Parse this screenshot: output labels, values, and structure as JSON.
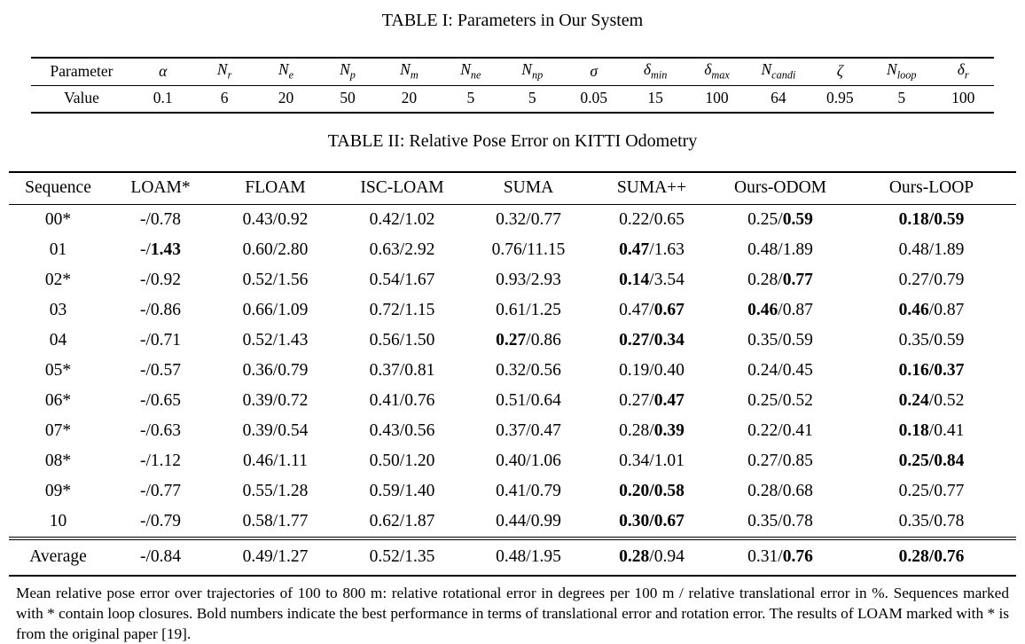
{
  "table1": {
    "title": "TABLE I: Parameters in Our System",
    "header_label": "Parameter",
    "value_label": "Value",
    "parameters": [
      "α",
      "N_r",
      "N_e",
      "N_p",
      "N_m",
      "N_ne",
      "N_np",
      "σ",
      "δ_min",
      "δ_max",
      "N_candi",
      "ζ",
      "N_loop",
      "δ_r"
    ],
    "values": [
      "0.1",
      "6",
      "20",
      "50",
      "20",
      "5",
      "5",
      "0.05",
      "15",
      "100",
      "64",
      "0.95",
      "5",
      "100"
    ]
  },
  "table2": {
    "title": "TABLE II: Relative Pose Error on KITTI Odometry",
    "columns": [
      "Sequence",
      "LOAM*",
      "FLOAM",
      "ISC-LOAM",
      "SUMA",
      "SUMA++",
      "Ours-ODOM",
      "Ours-LOOP"
    ],
    "rows": [
      {
        "seq": "00*",
        "cells": [
          "-/0.78",
          "0.43/0.92",
          "0.42/1.02",
          "0.32/0.77",
          "0.22/0.65",
          "0.25/*0.59*",
          "*0.18/0.59*"
        ]
      },
      {
        "seq": "01",
        "cells": [
          "-/*1.43*",
          "0.60/2.80",
          "0.63/2.92",
          "0.76/11.15",
          "*0.47*/1.63",
          "0.48/1.89",
          "0.48/1.89"
        ]
      },
      {
        "seq": "02*",
        "cells": [
          "-/0.92",
          "0.52/1.56",
          "0.54/1.67",
          "0.93/2.93",
          "*0.14*/3.54",
          "0.28/*0.77*",
          "0.27/0.79"
        ]
      },
      {
        "seq": "03",
        "cells": [
          "-/0.86",
          "0.66/1.09",
          "0.72/1.15",
          "0.61/1.25",
          "0.47/*0.67*",
          "*0.46*/0.87",
          "*0.46*/0.87"
        ]
      },
      {
        "seq": "04",
        "cells": [
          "-/0.71",
          "0.52/1.43",
          "0.56/1.50",
          "*0.27*/0.86",
          "*0.27/0.34*",
          "0.35/0.59",
          "0.35/0.59"
        ]
      },
      {
        "seq": "05*",
        "cells": [
          "-/0.57",
          "0.36/0.79",
          "0.37/0.81",
          "0.32/0.56",
          "0.19/0.40",
          "0.24/0.45",
          "*0.16/0.37*"
        ]
      },
      {
        "seq": "06*",
        "cells": [
          "-/0.65",
          "0.39/0.72",
          "0.41/0.76",
          "0.51/0.64",
          "0.27/*0.47*",
          "0.25/0.52",
          "*0.24*/0.52"
        ]
      },
      {
        "seq": "07*",
        "cells": [
          "-/0.63",
          "0.39/0.54",
          "0.43/0.56",
          "0.37/0.47",
          "0.28/*0.39*",
          "0.22/0.41",
          "*0.18*/0.41"
        ]
      },
      {
        "seq": "08*",
        "cells": [
          "-/1.12",
          "0.46/1.11",
          "0.50/1.20",
          "0.40/1.06",
          "0.34/1.01",
          "0.27/0.85",
          "*0.25/0.84*"
        ]
      },
      {
        "seq": "09*",
        "cells": [
          "-/0.77",
          "0.55/1.28",
          "0.59/1.40",
          "0.41/0.79",
          "*0.20/0.58*",
          "0.28/0.68",
          "0.25/0.77"
        ]
      },
      {
        "seq": "10",
        "cells": [
          "-/0.79",
          "0.58/1.77",
          "0.62/1.87",
          "0.44/0.99",
          "*0.30/0.67*",
          "0.35/0.78",
          "0.35/0.78"
        ]
      }
    ],
    "average": {
      "seq": "Average",
      "cells": [
        "-/0.84",
        "0.49/1.27",
        "0.52/1.35",
        "0.48/1.95",
        "*0.28*/0.94",
        "0.31/*0.76*",
        "*0.28/0.76*"
      ]
    }
  },
  "footnote": "Mean relative pose error over trajectories of 100 to 800 m: relative rotational error in degrees per 100 m / relative translational error in %. Sequences marked with * contain loop closures. Bold numbers indicate the best performance in terms of translational error and rotation error. The results of LOAM marked with * is from the original paper [19]."
}
